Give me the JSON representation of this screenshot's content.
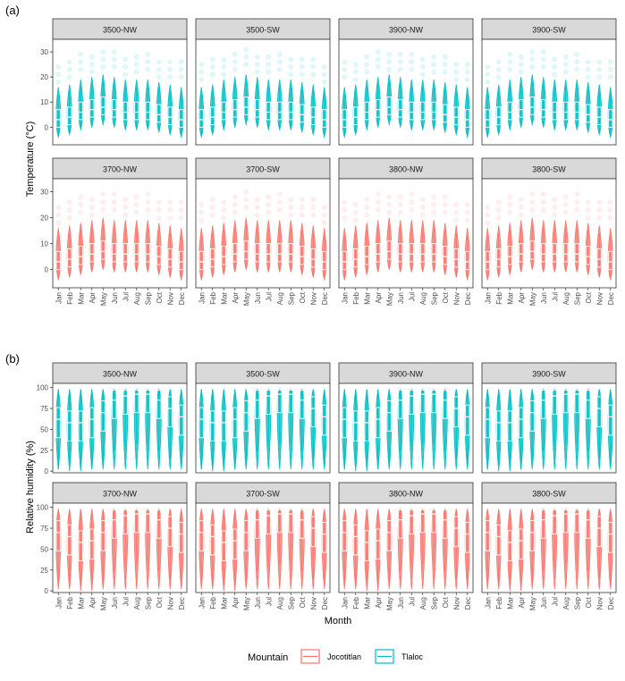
{
  "chart_data": [
    {
      "type": "box",
      "panel_label": "(a)",
      "ylabel": "Temperature (°C)",
      "ylim": [
        -7,
        35
      ],
      "yticks": [
        0,
        10,
        20,
        30
      ],
      "series_color": "#00BFC4",
      "facets_top": [
        "3500-NW",
        "3500-SW",
        "3900-NW",
        "3900-SW"
      ],
      "facets_bottom": [
        "3700-NW",
        "3700-SW",
        "3800-NW",
        "3800-SW"
      ],
      "top_mountain": "Tlaloc",
      "bottom_mountain": "Jocotitlan",
      "medians_top": [
        3,
        4,
        6,
        7,
        8,
        7,
        6,
        6,
        6,
        5,
        4,
        3
      ],
      "medians_bottom": [
        3,
        4,
        5,
        6,
        7,
        6,
        6,
        6,
        6,
        5,
        4,
        3
      ]
    },
    {
      "type": "box",
      "panel_label": "(b)",
      "ylabel": "Relative humidity (%)",
      "xlabel": "Month",
      "ylim": [
        -2,
        105
      ],
      "yticks": [
        0,
        25,
        50,
        75,
        100
      ],
      "facets_top": [
        "3500-NW",
        "3500-SW",
        "3900-NW",
        "3900-SW"
      ],
      "facets_bottom": [
        "3700-NW",
        "3700-SW",
        "3800-NW",
        "3800-SW"
      ],
      "top_mountain": "Tlaloc",
      "bottom_mountain": "Jocotitlan",
      "medians_top": [
        62,
        58,
        58,
        62,
        70,
        85,
        90,
        92,
        92,
        85,
        75,
        65
      ],
      "medians_bottom": [
        70,
        65,
        58,
        60,
        70,
        85,
        90,
        92,
        92,
        85,
        75,
        68
      ]
    }
  ],
  "months": [
    "Jan",
    "Feb",
    "Mar",
    "Apr",
    "May",
    "Jun",
    "Jul",
    "Aug",
    "Sep",
    "Oct",
    "Nov",
    "Dec"
  ],
  "legend": {
    "title": "Mountain",
    "items": [
      {
        "name": "Jocotitlan",
        "color": "#F8766D"
      },
      {
        "name": "Tlaloc",
        "color": "#00BFC4"
      }
    ]
  }
}
